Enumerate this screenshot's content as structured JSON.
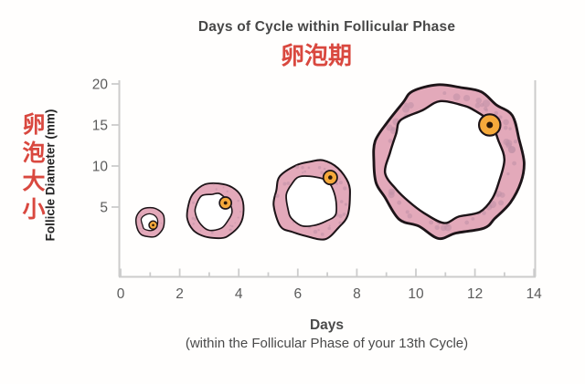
{
  "header": {
    "title_en": "Days of Cycle within Follicular Phase",
    "title_zh": "卵泡期"
  },
  "y_axis": {
    "label_zh": "卵泡大小",
    "label_en": "Follicle Diameter (mm)",
    "ticks": [
      20,
      15,
      10,
      5
    ]
  },
  "x_axis": {
    "ticks": [
      0,
      2,
      4,
      6,
      8,
      10,
      12,
      14
    ],
    "label": "Days",
    "sublabel": "(within the Follicular Phase of your 13th Cycle)"
  },
  "accent": {
    "red": "#D9483F",
    "title_gray": "#474747"
  },
  "chart_data": {
    "type": "scatter",
    "title": "Days of Cycle within Follicular Phase",
    "title_zh": "卵泡期",
    "xlabel": "Days",
    "xlabel_note": "(within the Follicular Phase of your 13th Cycle)",
    "ylabel": "Follicle Diameter (mm)",
    "ylabel_zh": "卵泡大小",
    "xlim": [
      0,
      14
    ],
    "ylim": [
      0,
      20
    ],
    "x_ticks": [
      0,
      2,
      4,
      6,
      8,
      10,
      12,
      14
    ],
    "y_ticks": [
      5,
      10,
      15,
      20
    ],
    "grid": false,
    "legend": false,
    "description": "Four cartoon ovarian-follicle cross sections drawn progressively larger along the x-axis, showing follicle growth (diameter in mm) across days of the follicular phase; each follicle is a pink speckled ring with a white antrum and an orange oocyte.",
    "follicles": [
      {
        "day": 1.0,
        "diameter_mm": 3.6,
        "center_mm": 3.1,
        "wall_ratio": 0.56,
        "oocyte": {
          "day": 1.1,
          "mm": 2.8,
          "r_mm": 0.5
        }
      },
      {
        "day": 3.2,
        "diameter_mm": 6.9,
        "center_mm": 4.6,
        "wall_ratio": 0.64,
        "oocyte": {
          "day": 3.55,
          "mm": 5.5,
          "r_mm": 0.72
        }
      },
      {
        "day": 6.5,
        "diameter_mm": 9.6,
        "center_mm": 5.9,
        "wall_ratio": 0.66,
        "oocyte": {
          "day": 7.1,
          "mm": 8.6,
          "r_mm": 0.85
        }
      },
      {
        "day": 11.1,
        "diameter_mm": 18.4,
        "center_mm": 10.8,
        "wall_ratio": 0.75,
        "oocyte": {
          "day": 12.5,
          "mm": 15.0,
          "r_mm": 1.3
        }
      }
    ],
    "colors": {
      "follicle_fill": "#E3A9BA",
      "follicle_dots": "#C08FA5",
      "outline": "#1D1418",
      "oocyte_fill": "#F5A93B",
      "oocyte_dot": "#2A1708",
      "interior": "#FFFFFF",
      "axis": "#CCCCCC",
      "tick_label": "#5B5B5B"
    }
  }
}
